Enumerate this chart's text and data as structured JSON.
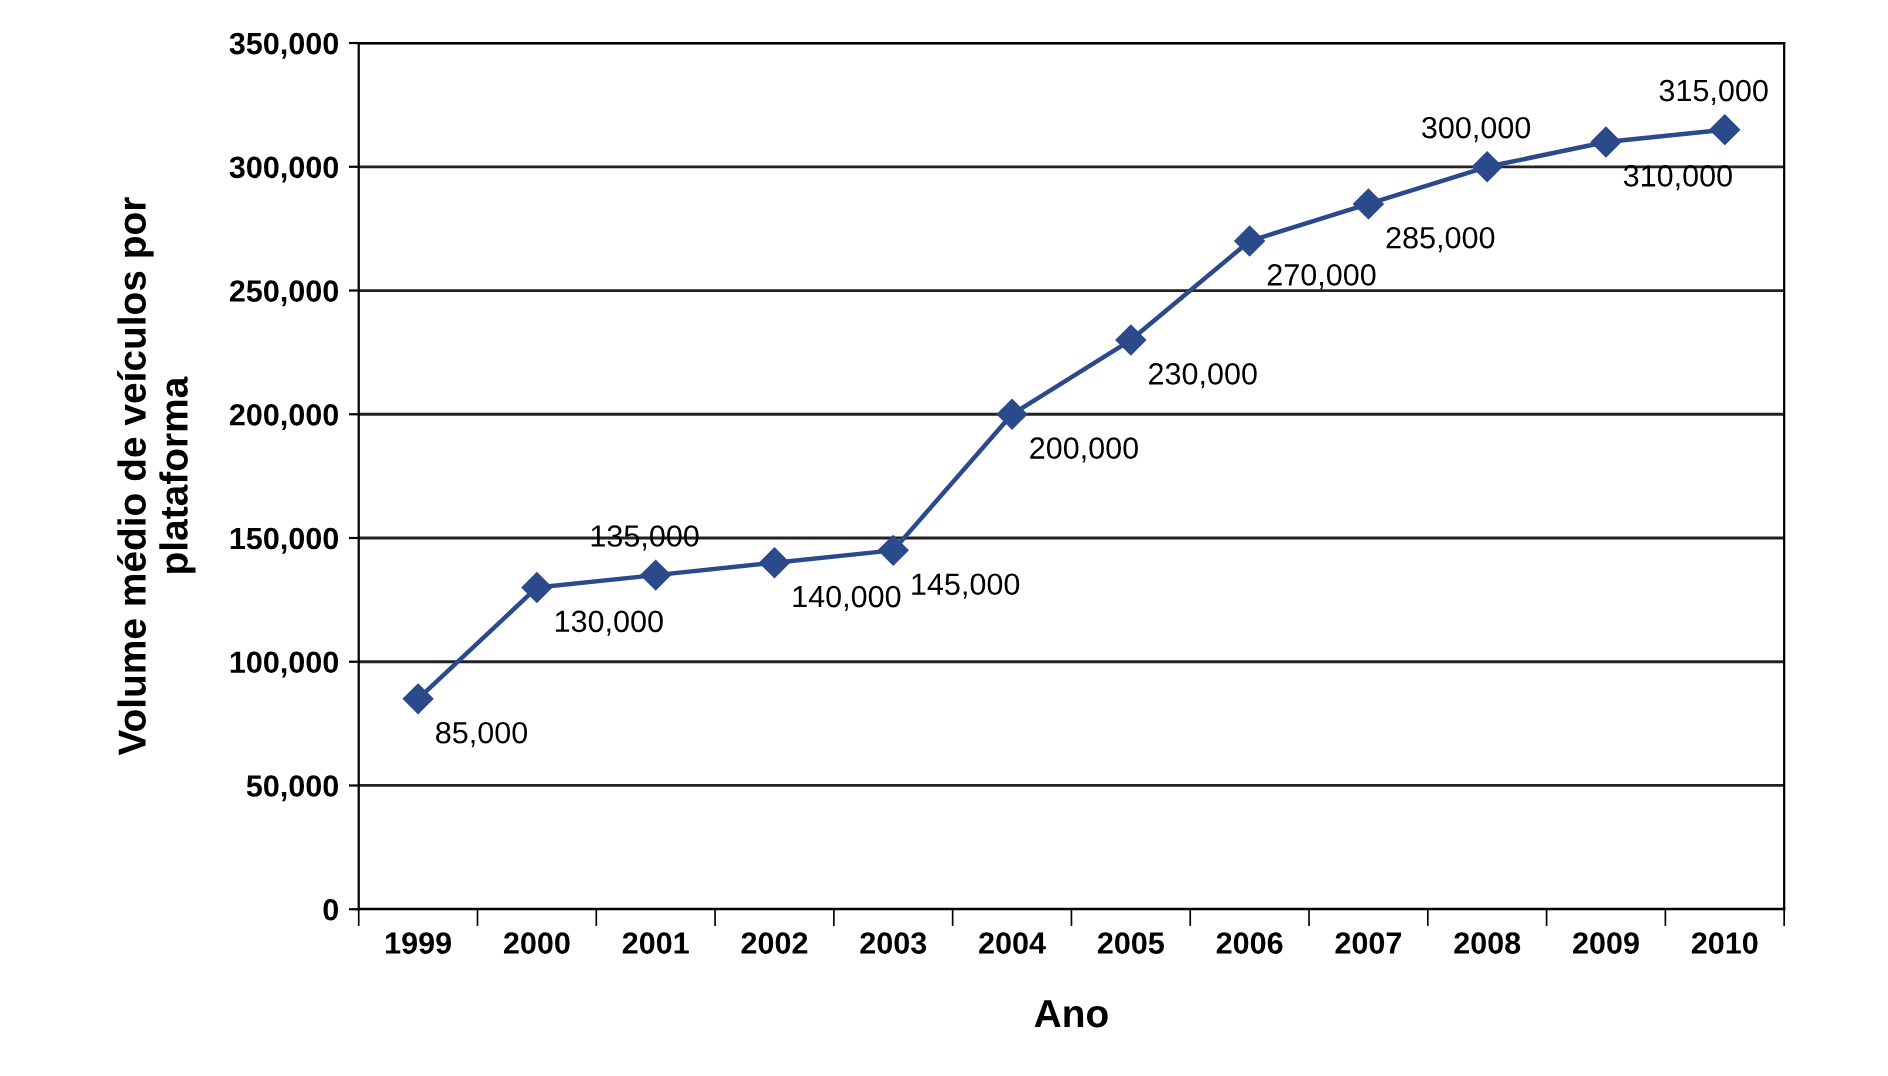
{
  "chart_data": {
    "type": "line",
    "xlabel": "Ano",
    "ylabel": "Volume médio de veículos por\nplataforma",
    "categories": [
      "1999",
      "2000",
      "2001",
      "2002",
      "2003",
      "2004",
      "2005",
      "2006",
      "2007",
      "2008",
      "2009",
      "2010"
    ],
    "series": [
      {
        "color": "#2b4a8c",
        "values": [
          85000,
          130000,
          135000,
          140000,
          145000,
          200000,
          230000,
          270000,
          285000,
          300000,
          310000,
          315000
        ],
        "value_labels": [
          "85,000",
          "130,000",
          "135,000",
          "140,000",
          "145,000",
          "200,000",
          "230,000",
          "270,000",
          "285,000",
          "300,000",
          "310,000",
          "315,000"
        ]
      }
    ],
    "ylim": [
      0,
      350000
    ],
    "yticks": [
      {
        "value": 0,
        "label": "0"
      },
      {
        "value": 50000,
        "label": "50,000"
      },
      {
        "value": 100000,
        "label": "100,000"
      },
      {
        "value": 150000,
        "label": "150,000"
      },
      {
        "value": 200000,
        "label": "200,000"
      },
      {
        "value": 250000,
        "label": "250,000"
      },
      {
        "value": 300000,
        "label": "300,000"
      },
      {
        "value": 350000,
        "label": "350,000"
      }
    ],
    "grid": "y",
    "marker": "diamond",
    "line_style": "solid",
    "legend": false
  }
}
